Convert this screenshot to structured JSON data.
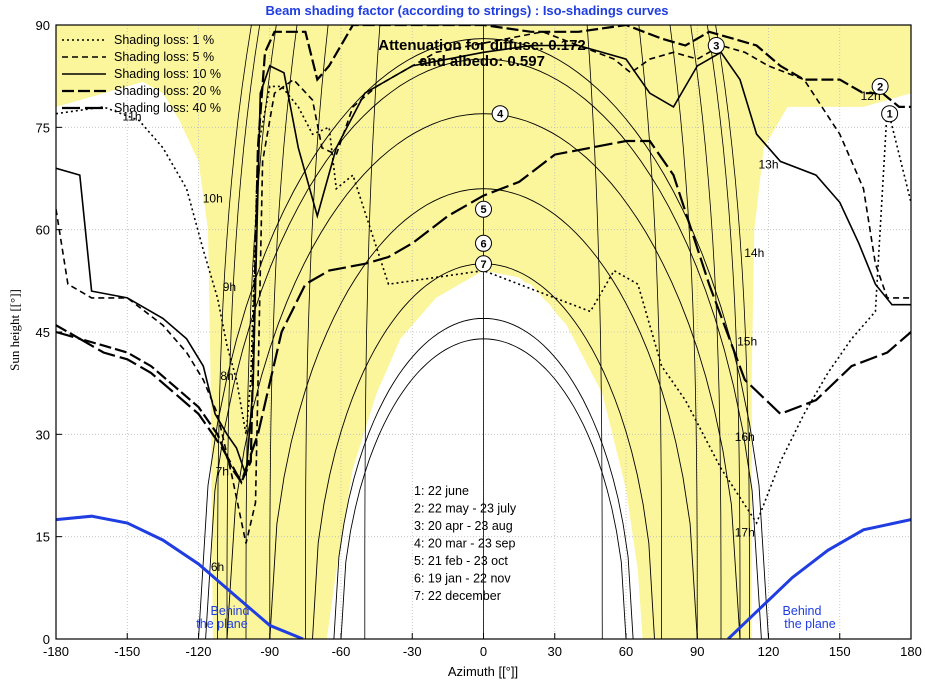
{
  "chart_data": {
    "type": "line",
    "title": "Beam shading factor (according to strings) : Iso-shadings curves",
    "xlabel": "Azimuth [[°]]",
    "ylabel": "Sun height [[°]]",
    "xlim": [
      -180,
      180
    ],
    "ylim": [
      0,
      90
    ],
    "xticks": [
      -180,
      -150,
      -120,
      -90,
      -60,
      -30,
      0,
      30,
      60,
      90,
      120,
      150,
      180
    ],
    "yticks": [
      0,
      15,
      30,
      45,
      60,
      75,
      90
    ],
    "grid": true,
    "legend_position": "top-left",
    "attenuation_line1": "Attenuation for diffuse: 0.172",
    "attenuation_line2": "and albedo: 0.597",
    "legend": [
      {
        "label": "Shading loss: 1 %",
        "dash": "2,3",
        "width": 1.6
      },
      {
        "label": "Shading loss: 5 %",
        "dash": "6,4",
        "width": 1.6
      },
      {
        "label": "Shading loss: 10 %",
        "dash": "none",
        "width": 1.6
      },
      {
        "label": "Shading loss: 20 %",
        "dash": "12,4",
        "width": 2.2
      },
      {
        "label": "Shading loss: 40 %",
        "dash": "18,5",
        "width": 2.2
      }
    ],
    "date_list": [
      "1: 22 june",
      "2: 22 may - 23 july",
      "3: 20 apr - 23 aug",
      "4: 20 mar - 23 sep",
      "5: 21 feb - 23 oct",
      "6: 19 jan - 22 nov",
      "7: 22 december"
    ],
    "behind_plane_label_1": "Behind",
    "behind_plane_label_2": "the plane",
    "sun_paths": [
      {
        "id": "1",
        "noon_height": 88,
        "rise_az": -120
      },
      {
        "id": "2",
        "noon_height": 85,
        "rise_az": -117
      },
      {
        "id": "3",
        "noon_height": 77,
        "rise_az": -108
      },
      {
        "id": "4",
        "noon_height": 66,
        "rise_az": -90
      },
      {
        "id": "5",
        "noon_height": 55,
        "rise_az": -72
      },
      {
        "id": "6",
        "noon_height": 47,
        "rise_az": -63
      },
      {
        "id": "7",
        "noon_height": 44,
        "rise_az": -60
      }
    ],
    "hour_labels": [
      {
        "text": "6h",
        "az": -112,
        "h": 10
      },
      {
        "text": "7h",
        "az": -110,
        "h": 24
      },
      {
        "text": "8h",
        "az": -108,
        "h": 38
      },
      {
        "text": "9h",
        "az": -107,
        "h": 51
      },
      {
        "text": "10h",
        "az": -114,
        "h": 64
      },
      {
        "text": "11h",
        "az": -148,
        "h": 76
      },
      {
        "text": "12h",
        "az": 163,
        "h": 79
      },
      {
        "text": "13h",
        "az": 120,
        "h": 69
      },
      {
        "text": "14h",
        "az": 114,
        "h": 56
      },
      {
        "text": "15h",
        "az": 111,
        "h": 43
      },
      {
        "text": "16h",
        "az": 110,
        "h": 29
      },
      {
        "text": "17h",
        "az": 110,
        "h": 15
      }
    ],
    "behind_plane_curves": [
      {
        "side": "left",
        "points": [
          [
            -180,
            17.5
          ],
          [
            -165,
            18
          ],
          [
            -150,
            17
          ],
          [
            -135,
            14.5
          ],
          [
            -120,
            11
          ],
          [
            -105,
            6.5
          ],
          [
            -90,
            2
          ],
          [
            -76,
            0
          ]
        ]
      },
      {
        "side": "right",
        "points": [
          [
            103,
            0
          ],
          [
            115,
            4
          ],
          [
            130,
            9
          ],
          [
            145,
            13
          ],
          [
            160,
            16
          ],
          [
            180,
            17.5
          ]
        ]
      }
    ],
    "iso_curves": [
      {
        "loss": "1 %",
        "points": [
          [
            -180,
            77
          ],
          [
            -160,
            78
          ],
          [
            -145,
            76
          ],
          [
            -135,
            72
          ],
          [
            -125,
            66
          ],
          [
            -118,
            57
          ],
          [
            -112,
            50
          ],
          [
            -108,
            43
          ],
          [
            -104,
            38
          ],
          [
            -100,
            30
          ],
          [
            -98,
            38
          ],
          [
            -95,
            72
          ],
          [
            -90,
            81
          ],
          [
            -85,
            81
          ],
          [
            -78,
            78
          ],
          [
            -72,
            74
          ],
          [
            -65,
            75
          ],
          [
            -62,
            66
          ],
          [
            -55,
            68
          ],
          [
            -40,
            52
          ],
          [
            0,
            54
          ],
          [
            30,
            50
          ],
          [
            45,
            48
          ],
          [
            55,
            54
          ],
          [
            65,
            52
          ],
          [
            75,
            40
          ],
          [
            85,
            35
          ],
          [
            100,
            25
          ],
          [
            115,
            17
          ],
          [
            125,
            26
          ],
          [
            135,
            33
          ],
          [
            145,
            39
          ],
          [
            155,
            44
          ],
          [
            165,
            48
          ],
          [
            170,
            78
          ],
          [
            180,
            64
          ]
        ]
      },
      {
        "loss": "5 %",
        "points": [
          [
            -180,
            63
          ],
          [
            -175,
            52
          ],
          [
            -165,
            50
          ],
          [
            -150,
            50
          ],
          [
            -135,
            46
          ],
          [
            -125,
            42
          ],
          [
            -118,
            38
          ],
          [
            -112,
            33
          ],
          [
            -106,
            24
          ],
          [
            -100,
            14
          ],
          [
            -96,
            20
          ],
          [
            -93,
            70
          ],
          [
            -88,
            80
          ],
          [
            -80,
            82
          ],
          [
            -72,
            79
          ],
          [
            -68,
            72
          ],
          [
            -62,
            71
          ],
          [
            -55,
            78
          ],
          [
            -45,
            81
          ],
          [
            -20,
            86
          ],
          [
            10,
            88
          ],
          [
            25,
            89
          ],
          [
            40,
            87
          ],
          [
            55,
            85
          ],
          [
            62,
            83
          ],
          [
            70,
            85
          ],
          [
            80,
            86
          ],
          [
            90,
            85
          ],
          [
            100,
            87
          ],
          [
            110,
            86
          ],
          [
            120,
            84
          ],
          [
            135,
            82
          ],
          [
            150,
            74
          ],
          [
            160,
            66
          ],
          [
            165,
            55
          ],
          [
            170,
            50
          ],
          [
            180,
            50
          ]
        ]
      },
      {
        "loss": "10 %",
        "points": [
          [
            -180,
            69
          ],
          [
            -170,
            68
          ],
          [
            -165,
            51
          ],
          [
            -150,
            50
          ],
          [
            -135,
            47
          ],
          [
            -125,
            44
          ],
          [
            -118,
            40
          ],
          [
            -113,
            33
          ],
          [
            -108,
            30
          ],
          [
            -104,
            28
          ],
          [
            -100,
            24
          ],
          [
            -97,
            37
          ],
          [
            -94,
            80
          ],
          [
            -90,
            84
          ],
          [
            -84,
            83
          ],
          [
            -78,
            72
          ],
          [
            -70,
            62
          ],
          [
            -62,
            72
          ],
          [
            -50,
            80
          ],
          [
            -30,
            84
          ],
          [
            0,
            86
          ],
          [
            20,
            87
          ],
          [
            40,
            87
          ],
          [
            60,
            85
          ],
          [
            70,
            80
          ],
          [
            80,
            78
          ],
          [
            90,
            84
          ],
          [
            100,
            86
          ],
          [
            108,
            82
          ],
          [
            115,
            74
          ],
          [
            125,
            70
          ],
          [
            140,
            68
          ],
          [
            150,
            64
          ],
          [
            158,
            58
          ],
          [
            165,
            52
          ],
          [
            172,
            49
          ],
          [
            180,
            49
          ]
        ]
      },
      {
        "loss": "20 %",
        "points": [
          [
            -180,
            46
          ],
          [
            -170,
            44
          ],
          [
            -160,
            43
          ],
          [
            -150,
            42
          ],
          [
            -140,
            40
          ],
          [
            -130,
            37
          ],
          [
            -120,
            34
          ],
          [
            -112,
            30
          ],
          [
            -106,
            25
          ],
          [
            -102,
            23
          ],
          [
            -98,
            26
          ],
          [
            -95,
            72
          ],
          [
            -92,
            86
          ],
          [
            -88,
            89
          ],
          [
            -75,
            89
          ],
          [
            -70,
            82
          ],
          [
            -65,
            84
          ],
          [
            -55,
            90
          ],
          [
            -30,
            90
          ],
          [
            0,
            90
          ],
          [
            20,
            89
          ],
          [
            40,
            89
          ],
          [
            60,
            90
          ],
          [
            75,
            88
          ],
          [
            85,
            87
          ],
          [
            95,
            89
          ],
          [
            105,
            88
          ],
          [
            115,
            87
          ],
          [
            125,
            84
          ],
          [
            135,
            82
          ],
          [
            150,
            82
          ],
          [
            160,
            80
          ],
          [
            168,
            80
          ],
          [
            175,
            78
          ],
          [
            180,
            78
          ]
        ]
      },
      {
        "loss": "40 %",
        "points": [
          [
            -180,
            45
          ],
          [
            -170,
            44
          ],
          [
            -160,
            42
          ],
          [
            -150,
            41
          ],
          [
            -140,
            39
          ],
          [
            -130,
            36
          ],
          [
            -120,
            33
          ],
          [
            -110,
            28
          ],
          [
            -102,
            23
          ],
          [
            -95,
            30
          ],
          [
            -85,
            45
          ],
          [
            -75,
            52
          ],
          [
            -65,
            54
          ],
          [
            -50,
            55
          ],
          [
            -40,
            56
          ],
          [
            -30,
            58
          ],
          [
            -15,
            62
          ],
          [
            0,
            65
          ],
          [
            15,
            67
          ],
          [
            30,
            71
          ],
          [
            45,
            72
          ],
          [
            60,
            73
          ],
          [
            70,
            73
          ],
          [
            80,
            68
          ],
          [
            95,
            52
          ],
          [
            110,
            38
          ],
          [
            125,
            33
          ],
          [
            140,
            35
          ],
          [
            155,
            40
          ],
          [
            170,
            42
          ],
          [
            180,
            45
          ]
        ]
      }
    ]
  }
}
